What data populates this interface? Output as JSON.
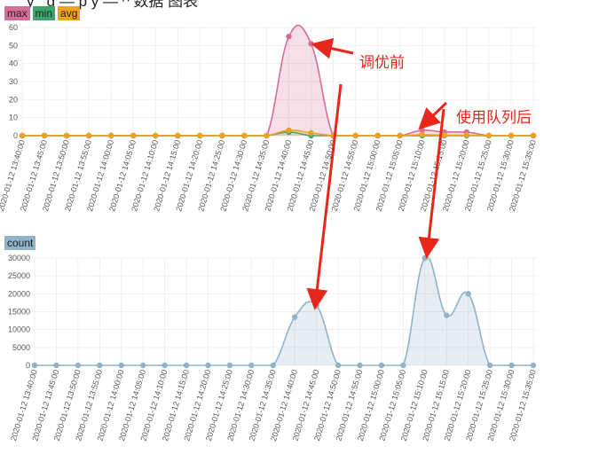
{
  "page_title": "y            _g  —  p y —  ^ 数据 图表",
  "chart_data": [
    {
      "type": "area",
      "categories": [
        "2020-01-12 13:40:00",
        "2020-01-12 13:45:00",
        "2020-01-12 13:50:00",
        "2020-01-12 13:55:00",
        "2020-01-12 14:00:00",
        "2020-01-12 14:05:00",
        "2020-01-12 14:10:00",
        "2020-01-12 14:15:00",
        "2020-01-12 14:20:00",
        "2020-01-12 14:25:00",
        "2020-01-12 14:30:00",
        "2020-01-12 14:35:00",
        "2020-01-12 14:40:00",
        "2020-01-12 14:45:00",
        "2020-01-12 14:50:00",
        "2020-01-12 14:55:00",
        "2020-01-12 15:00:00",
        "2020-01-12 15:05:00",
        "2020-01-12 15:10:00",
        "2020-01-12 15:15:00",
        "2020-01-12 15:20:00",
        "2020-01-12 15:25:00",
        "2020-01-12 15:30:00",
        "2020-01-12 15:35:00"
      ],
      "series": [
        {
          "name": "max",
          "color": "#d86c98",
          "fill": "rgba(216,108,152,0.22)",
          "values": [
            0,
            0,
            0,
            0,
            0,
            0,
            0,
            0,
            0,
            0,
            0,
            0,
            55,
            51,
            0,
            0,
            0,
            0,
            3,
            2,
            2,
            0,
            0,
            0
          ]
        },
        {
          "name": "min",
          "color": "#3aa86a",
          "fill": "rgba(58,168,106,0.12)",
          "values": [
            0,
            0,
            0,
            0,
            0,
            0,
            0,
            0,
            0,
            0,
            0,
            0,
            2,
            0,
            0,
            0,
            0,
            0,
            0,
            0,
            0,
            0,
            0,
            0
          ]
        },
        {
          "name": "avg",
          "color": "#f0a020",
          "fill": "rgba(240,160,32,0.12)",
          "values": [
            0,
            0,
            0,
            0,
            0,
            0,
            0,
            0,
            0,
            0,
            0,
            0,
            3,
            1.5,
            0,
            0,
            0,
            0,
            0.5,
            0.3,
            0.3,
            0,
            0,
            0
          ]
        }
      ],
      "yticks": [
        0,
        10,
        20,
        30,
        40,
        50,
        60
      ],
      "ylim": [
        0,
        60
      ],
      "grid": true,
      "legend": "top-left"
    },
    {
      "type": "area",
      "categories": [
        "2020-01-12 13:40:00",
        "2020-01-12 13:45:00",
        "2020-01-12 13:50:00",
        "2020-01-12 13:55:00",
        "2020-01-12 14:00:00",
        "2020-01-12 14:05:00",
        "2020-01-12 14:10:00",
        "2020-01-12 14:15:00",
        "2020-01-12 14:20:00",
        "2020-01-12 14:25:00",
        "2020-01-12 14:30:00",
        "2020-01-12 14:35:00",
        "2020-01-12 14:40:00",
        "2020-01-12 14:45:00",
        "2020-01-12 14:50:00",
        "2020-01-12 14:55:00",
        "2020-01-12 15:00:00",
        "2020-01-12 15:05:00",
        "2020-01-12 15:10:00",
        "2020-01-12 15:15:00",
        "2020-01-12 15:20:00",
        "2020-01-12 15:25:00",
        "2020-01-12 15:30:00",
        "2020-01-12 15:35:00"
      ],
      "series": [
        {
          "name": "count",
          "color": "#8fb3c8",
          "fill": "rgba(143,179,200,0.22)",
          "values": [
            0,
            0,
            0,
            0,
            0,
            0,
            0,
            0,
            0,
            0,
            0,
            0,
            13500,
            16700,
            0,
            0,
            0,
            0,
            30000,
            14000,
            20000,
            0,
            0,
            0
          ]
        }
      ],
      "yticks": [
        0,
        5000,
        10000,
        15000,
        20000,
        25000,
        30000
      ],
      "ylim": [
        0,
        30000
      ],
      "grid": true,
      "legend": "top-left"
    }
  ],
  "annotations": {
    "before_tuning": "调优前",
    "after_queue": "使用队列后"
  },
  "colors": {
    "arrow": "#e8261a"
  }
}
